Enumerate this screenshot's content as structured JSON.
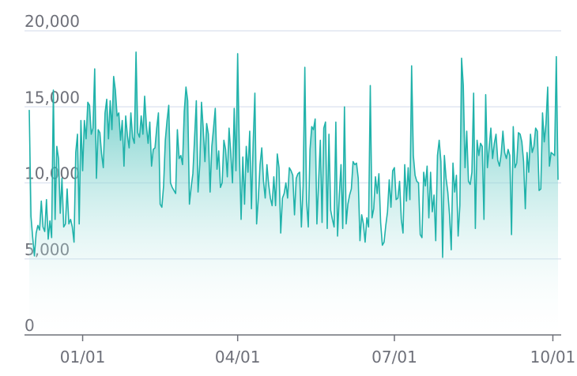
{
  "chart_data": {
    "type": "area",
    "title": "",
    "xlabel": "",
    "ylabel": "",
    "ylim": [
      0,
      20000
    ],
    "yticks": [
      {
        "value": 0,
        "label": "0"
      },
      {
        "value": 5000,
        "label": "5,000"
      },
      {
        "value": 10000,
        "label": "10,000"
      },
      {
        "value": 15000,
        "label": "15,000"
      },
      {
        "value": 20000,
        "label": "20,000"
      }
    ],
    "x_range": [
      "12/01",
      "10/04"
    ],
    "xticks": [
      {
        "value": "01/01",
        "label": "01/01"
      },
      {
        "value": "04/01",
        "label": "04/01"
      },
      {
        "value": "07/01",
        "label": "07/01"
      },
      {
        "value": "10/01",
        "label": "10/01"
      }
    ],
    "grid": true,
    "line_color": "#20b2aa",
    "area_gradient": [
      "#20b2aa",
      "#ffffff"
    ],
    "points": [
      [
        "12/01",
        14800
      ],
      [
        "12/02",
        7800
      ],
      [
        "12/03",
        6400
      ],
      [
        "12/04",
        5200
      ],
      [
        "12/05",
        6700
      ],
      [
        "12/06",
        7200
      ],
      [
        "12/07",
        6900
      ],
      [
        "12/08",
        8800
      ],
      [
        "12/09",
        7100
      ],
      [
        "12/10",
        6800
      ],
      [
        "12/11",
        8900
      ],
      [
        "12/12",
        6300
      ],
      [
        "12/13",
        7500
      ],
      [
        "12/14",
        6400
      ],
      [
        "12/15",
        16100
      ],
      [
        "12/16",
        7600
      ],
      [
        "12/17",
        12400
      ],
      [
        "12/18",
        11600
      ],
      [
        "12/19",
        8000
      ],
      [
        "12/20",
        10300
      ],
      [
        "12/21",
        7100
      ],
      [
        "12/22",
        7300
      ],
      [
        "12/23",
        9600
      ],
      [
        "12/24",
        7300
      ],
      [
        "12/25",
        7600
      ],
      [
        "12/26",
        7100
      ],
      [
        "12/27",
        6100
      ],
      [
        "12/28",
        12000
      ],
      [
        "12/29",
        13200
      ],
      [
        "12/30",
        7300
      ],
      [
        "12/31",
        14100
      ],
      [
        "01/01",
        10800
      ],
      [
        "01/02",
        14100
      ],
      [
        "01/03",
        12900
      ],
      [
        "01/04",
        15300
      ],
      [
        "01/05",
        15100
      ],
      [
        "01/06",
        13200
      ],
      [
        "01/07",
        13600
      ],
      [
        "01/08",
        17500
      ],
      [
        "01/09",
        10300
      ],
      [
        "01/10",
        13500
      ],
      [
        "01/11",
        13300
      ],
      [
        "01/12",
        11900
      ],
      [
        "01/13",
        11000
      ],
      [
        "01/14",
        14600
      ],
      [
        "01/15",
        15500
      ],
      [
        "01/16",
        12900
      ],
      [
        "01/17",
        15400
      ],
      [
        "01/18",
        13500
      ],
      [
        "01/19",
        17000
      ],
      [
        "01/20",
        16100
      ],
      [
        "01/21",
        14400
      ],
      [
        "01/22",
        14600
      ],
      [
        "01/23",
        12800
      ],
      [
        "01/24",
        14100
      ],
      [
        "01/25",
        11100
      ],
      [
        "01/26",
        14400
      ],
      [
        "01/27",
        13100
      ],
      [
        "01/28",
        12300
      ],
      [
        "01/29",
        14600
      ],
      [
        "01/30",
        13000
      ],
      [
        "01/31",
        12600
      ],
      [
        "02/01",
        18600
      ],
      [
        "02/02",
        13300
      ],
      [
        "02/03",
        13000
      ],
      [
        "02/04",
        14400
      ],
      [
        "02/05",
        13200
      ],
      [
        "02/06",
        15700
      ],
      [
        "02/07",
        13800
      ],
      [
        "02/08",
        12600
      ],
      [
        "02/09",
        14000
      ],
      [
        "02/10",
        11100
      ],
      [
        "02/11",
        12200
      ],
      [
        "02/12",
        12300
      ],
      [
        "02/13",
        13600
      ],
      [
        "02/14",
        14600
      ],
      [
        "02/15",
        8600
      ],
      [
        "02/16",
        8400
      ],
      [
        "02/17",
        9800
      ],
      [
        "02/18",
        12800
      ],
      [
        "02/19",
        14100
      ],
      [
        "02/20",
        15100
      ],
      [
        "02/21",
        10000
      ],
      [
        "02/22",
        9700
      ],
      [
        "02/23",
        9500
      ],
      [
        "02/24",
        9300
      ],
      [
        "02/25",
        13500
      ],
      [
        "02/26",
        11600
      ],
      [
        "02/27",
        11800
      ],
      [
        "02/28",
        11200
      ],
      [
        "03/01",
        14700
      ],
      [
        "03/02",
        16300
      ],
      [
        "03/03",
        15400
      ],
      [
        "03/04",
        8600
      ],
      [
        "03/05",
        9700
      ],
      [
        "03/06",
        10600
      ],
      [
        "03/07",
        13000
      ],
      [
        "03/08",
        15400
      ],
      [
        "03/09",
        9400
      ],
      [
        "03/10",
        11200
      ],
      [
        "03/11",
        15300
      ],
      [
        "03/12",
        13600
      ],
      [
        "03/13",
        11400
      ],
      [
        "03/14",
        13900
      ],
      [
        "03/15",
        13200
      ],
      [
        "03/16",
        9400
      ],
      [
        "03/17",
        12400
      ],
      [
        "03/18",
        13600
      ],
      [
        "03/19",
        14900
      ],
      [
        "03/20",
        10900
      ],
      [
        "03/21",
        12100
      ],
      [
        "03/22",
        9700
      ],
      [
        "03/23",
        10000
      ],
      [
        "03/24",
        12800
      ],
      [
        "03/25",
        12200
      ],
      [
        "03/26",
        10400
      ],
      [
        "03/27",
        13600
      ],
      [
        "03/28",
        12000
      ],
      [
        "03/29",
        10000
      ],
      [
        "03/30",
        14900
      ],
      [
        "03/31",
        10800
      ],
      [
        "04/01",
        18500
      ],
      [
        "04/02",
        12000
      ],
      [
        "04/03",
        7600
      ],
      [
        "04/04",
        11700
      ],
      [
        "04/05",
        8600
      ],
      [
        "04/06",
        12400
      ],
      [
        "04/07",
        10700
      ],
      [
        "04/08",
        13400
      ],
      [
        "04/09",
        8300
      ],
      [
        "04/10",
        12600
      ],
      [
        "04/11",
        15900
      ],
      [
        "04/12",
        7300
      ],
      [
        "04/13",
        9000
      ],
      [
        "04/14",
        11200
      ],
      [
        "04/15",
        12300
      ],
      [
        "04/16",
        10100
      ],
      [
        "04/17",
        9000
      ],
      [
        "04/18",
        11200
      ],
      [
        "04/19",
        9900
      ],
      [
        "04/20",
        9000
      ],
      [
        "04/21",
        8500
      ],
      [
        "04/22",
        10400
      ],
      [
        "04/23",
        8500
      ],
      [
        "04/24",
        11900
      ],
      [
        "04/25",
        11000
      ],
      [
        "04/26",
        6700
      ],
      [
        "04/27",
        9000
      ],
      [
        "04/28",
        9300
      ],
      [
        "04/29",
        10000
      ],
      [
        "04/30",
        9000
      ],
      [
        "05/01",
        11000
      ],
      [
        "05/02",
        10800
      ],
      [
        "05/03",
        10500
      ],
      [
        "05/04",
        7900
      ],
      [
        "05/05",
        10300
      ],
      [
        "05/06",
        10600
      ],
      [
        "05/07",
        10700
      ],
      [
        "05/08",
        7100
      ],
      [
        "05/09",
        9800
      ],
      [
        "05/10",
        17600
      ],
      [
        "05/11",
        8800
      ],
      [
        "05/12",
        7100
      ],
      [
        "05/13",
        12200
      ],
      [
        "05/14",
        13700
      ],
      [
        "05/15",
        13500
      ],
      [
        "05/16",
        14200
      ],
      [
        "05/17",
        7300
      ],
      [
        "05/18",
        10100
      ],
      [
        "05/19",
        12800
      ],
      [
        "05/20",
        7400
      ],
      [
        "05/21",
        13600
      ],
      [
        "05/22",
        14000
      ],
      [
        "05/23",
        7000
      ],
      [
        "05/24",
        13200
      ],
      [
        "05/25",
        8200
      ],
      [
        "05/26",
        7600
      ],
      [
        "05/27",
        7100
      ],
      [
        "05/28",
        14000
      ],
      [
        "05/29",
        6500
      ],
      [
        "05/30",
        9200
      ],
      [
        "05/31",
        11200
      ],
      [
        "06/01",
        7000
      ],
      [
        "06/02",
        15000
      ],
      [
        "06/03",
        7300
      ],
      [
        "06/04",
        8600
      ],
      [
        "06/05",
        9200
      ],
      [
        "06/06",
        9600
      ],
      [
        "06/07",
        11400
      ],
      [
        "06/08",
        11200
      ],
      [
        "06/09",
        11300
      ],
      [
        "06/10",
        10300
      ],
      [
        "06/11",
        6200
      ],
      [
        "06/12",
        7900
      ],
      [
        "06/13",
        7300
      ],
      [
        "06/14",
        6100
      ],
      [
        "06/15",
        7700
      ],
      [
        "06/16",
        7100
      ],
      [
        "06/17",
        16400
      ],
      [
        "06/18",
        7700
      ],
      [
        "06/19",
        8300
      ],
      [
        "06/20",
        10400
      ],
      [
        "06/21",
        9300
      ],
      [
        "06/22",
        10600
      ],
      [
        "06/23",
        7400
      ],
      [
        "06/24",
        5900
      ],
      [
        "06/25",
        6100
      ],
      [
        "06/26",
        7200
      ],
      [
        "06/27",
        8100
      ],
      [
        "06/28",
        10200
      ],
      [
        "06/29",
        8400
      ],
      [
        "06/30",
        10800
      ],
      [
        "07/01",
        11000
      ],
      [
        "07/02",
        8900
      ],
      [
        "07/03",
        9000
      ],
      [
        "07/04",
        10100
      ],
      [
        "07/05",
        7600
      ],
      [
        "07/06",
        6700
      ],
      [
        "07/07",
        11200
      ],
      [
        "07/08",
        8800
      ],
      [
        "07/09",
        11000
      ],
      [
        "07/10",
        8900
      ],
      [
        "07/11",
        17700
      ],
      [
        "07/12",
        11800
      ],
      [
        "07/13",
        10500
      ],
      [
        "07/14",
        10100
      ],
      [
        "07/15",
        10000
      ],
      [
        "07/16",
        6600
      ],
      [
        "07/17",
        6400
      ],
      [
        "07/18",
        10700
      ],
      [
        "07/19",
        9800
      ],
      [
        "07/20",
        11100
      ],
      [
        "07/21",
        7700
      ],
      [
        "07/22",
        10700
      ],
      [
        "07/23",
        8100
      ],
      [
        "07/24",
        9200
      ],
      [
        "07/25",
        6200
      ],
      [
        "07/26",
        11800
      ],
      [
        "07/27",
        12800
      ],
      [
        "07/28",
        11400
      ],
      [
        "07/29",
        5100
      ],
      [
        "07/30",
        11800
      ],
      [
        "07/31",
        10300
      ],
      [
        "08/01",
        9400
      ],
      [
        "08/02",
        7900
      ],
      [
        "08/03",
        5600
      ],
      [
        "08/04",
        11300
      ],
      [
        "08/05",
        9400
      ],
      [
        "08/06",
        10500
      ],
      [
        "08/07",
        6500
      ],
      [
        "08/08",
        8500
      ],
      [
        "08/09",
        18200
      ],
      [
        "08/10",
        16400
      ],
      [
        "08/11",
        11000
      ],
      [
        "08/12",
        13400
      ],
      [
        "08/13",
        10100
      ],
      [
        "08/14",
        9900
      ],
      [
        "08/15",
        10700
      ],
      [
        "08/16",
        15900
      ],
      [
        "08/17",
        7000
      ],
      [
        "08/18",
        12800
      ],
      [
        "08/19",
        11800
      ],
      [
        "08/20",
        12600
      ],
      [
        "08/21",
        12400
      ],
      [
        "08/22",
        7600
      ],
      [
        "08/23",
        15800
      ],
      [
        "08/24",
        11000
      ],
      [
        "08/25",
        12300
      ],
      [
        "08/26",
        13600
      ],
      [
        "08/27",
        11600
      ],
      [
        "08/28",
        12600
      ],
      [
        "08/29",
        13200
      ],
      [
        "08/30",
        11500
      ],
      [
        "08/31",
        11100
      ],
      [
        "09/01",
        11900
      ],
      [
        "09/02",
        13400
      ],
      [
        "09/03",
        12000
      ],
      [
        "09/04",
        11600
      ],
      [
        "09/05",
        12200
      ],
      [
        "09/06",
        11800
      ],
      [
        "09/07",
        6600
      ],
      [
        "09/08",
        13700
      ],
      [
        "09/09",
        11000
      ],
      [
        "09/10",
        11300
      ],
      [
        "09/11",
        13300
      ],
      [
        "09/12",
        13200
      ],
      [
        "09/13",
        12700
      ],
      [
        "09/14",
        11400
      ],
      [
        "09/15",
        8300
      ],
      [
        "09/16",
        12000
      ],
      [
        "09/17",
        10700
      ],
      [
        "09/18",
        13200
      ],
      [
        "09/19",
        12000
      ],
      [
        "09/20",
        12400
      ],
      [
        "09/21",
        13600
      ],
      [
        "09/22",
        13400
      ],
      [
        "09/23",
        9500
      ],
      [
        "09/24",
        9600
      ],
      [
        "09/25",
        14600
      ],
      [
        "09/26",
        12700
      ],
      [
        "09/27",
        13900
      ],
      [
        "09/28",
        16300
      ],
      [
        "09/29",
        11100
      ],
      [
        "09/30",
        12000
      ],
      [
        "10/01",
        11900
      ],
      [
        "10/02",
        11800
      ],
      [
        "10/03",
        18300
      ],
      [
        "10/04",
        10200
      ]
    ]
  }
}
